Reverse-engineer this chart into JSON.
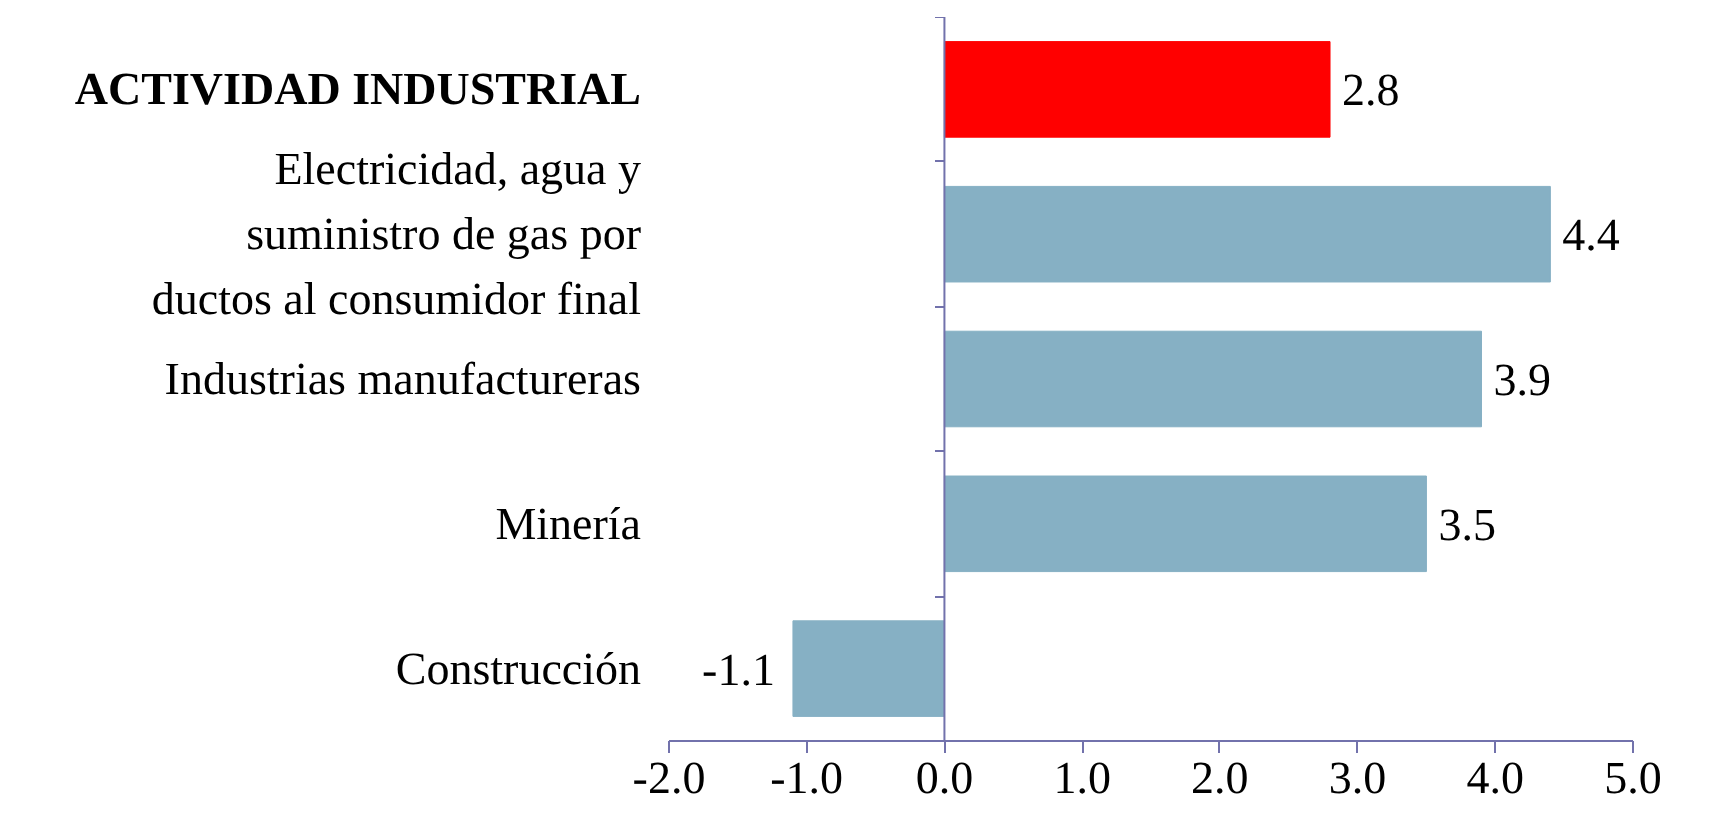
{
  "chart_data": {
    "type": "bar",
    "orientation": "horizontal",
    "categories": [
      "ACTIVIDAD INDUSTRIAL",
      "Electricidad, agua y suministro de gas por ductos al consumidor final",
      "Industrias manufactureras",
      "Minería",
      "Construcción"
    ],
    "values": [
      2.8,
      4.4,
      3.9,
      3.5,
      -1.1
    ],
    "colors": [
      "#ff0000",
      "#86b0c4",
      "#86b0c4",
      "#86b0c4",
      "#86b0c4"
    ],
    "data_labels": true,
    "xlim": [
      -2,
      5
    ],
    "xticks": [
      {
        "value": -2,
        "label": "-2.0"
      },
      {
        "value": -1,
        "label": "-1.0"
      },
      {
        "value": 0,
        "label": "0.0"
      },
      {
        "value": 1,
        "label": "1.0"
      },
      {
        "value": 2,
        "label": "2.0"
      },
      {
        "value": 3,
        "label": "3.0"
      },
      {
        "value": 4,
        "label": "4.0"
      },
      {
        "value": 5,
        "label": "5.0"
      }
    ],
    "ref_lines": [
      {
        "axis": "x",
        "value": 0,
        "color": "#7272ac"
      }
    ]
  }
}
